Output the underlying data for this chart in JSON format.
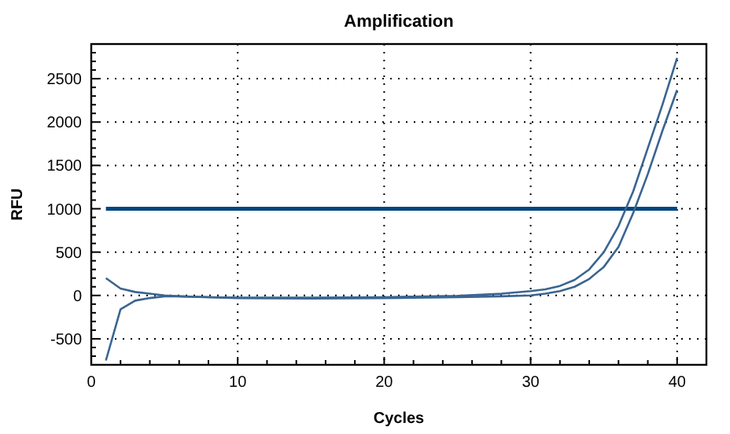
{
  "chart_data": {
    "type": "line",
    "title": "Amplification",
    "xlabel": "Cycles",
    "ylabel": "RFU",
    "xlim": [
      0,
      42
    ],
    "xticks": [
      0,
      10,
      20,
      30,
      40
    ],
    "ylim": [
      -800,
      2900
    ],
    "yticks": [
      -500,
      0,
      500,
      1000,
      1500,
      2000,
      2500
    ],
    "grid": true,
    "line_style": "solid",
    "marker": "none",
    "ref_lines": [
      {
        "axis": "y",
        "value": 1000,
        "color": "#00457f"
      }
    ],
    "series": [
      {
        "color": "#3a6591",
        "x": [
          1,
          2,
          3,
          4,
          5,
          6,
          8,
          10,
          15,
          20,
          25,
          28,
          30,
          31,
          32,
          33,
          34,
          35,
          36,
          37,
          38,
          39,
          40
        ],
        "values": [
          200,
          80,
          40,
          20,
          0,
          -10,
          -20,
          -25,
          -25,
          -20,
          -5,
          20,
          50,
          70,
          110,
          180,
          300,
          500,
          800,
          1200,
          1700,
          2200,
          2740
        ]
      },
      {
        "color": "#3a6591",
        "x": [
          1,
          2,
          3,
          4,
          5,
          6,
          8,
          10,
          15,
          20,
          25,
          28,
          30,
          31,
          32,
          33,
          34,
          35,
          36,
          37,
          38,
          39,
          40
        ],
        "values": [
          -750,
          -160,
          -60,
          -30,
          -10,
          -10,
          -20,
          -30,
          -35,
          -30,
          -20,
          -10,
          0,
          20,
          50,
          100,
          190,
          330,
          560,
          950,
          1400,
          1900,
          2370
        ]
      }
    ]
  }
}
